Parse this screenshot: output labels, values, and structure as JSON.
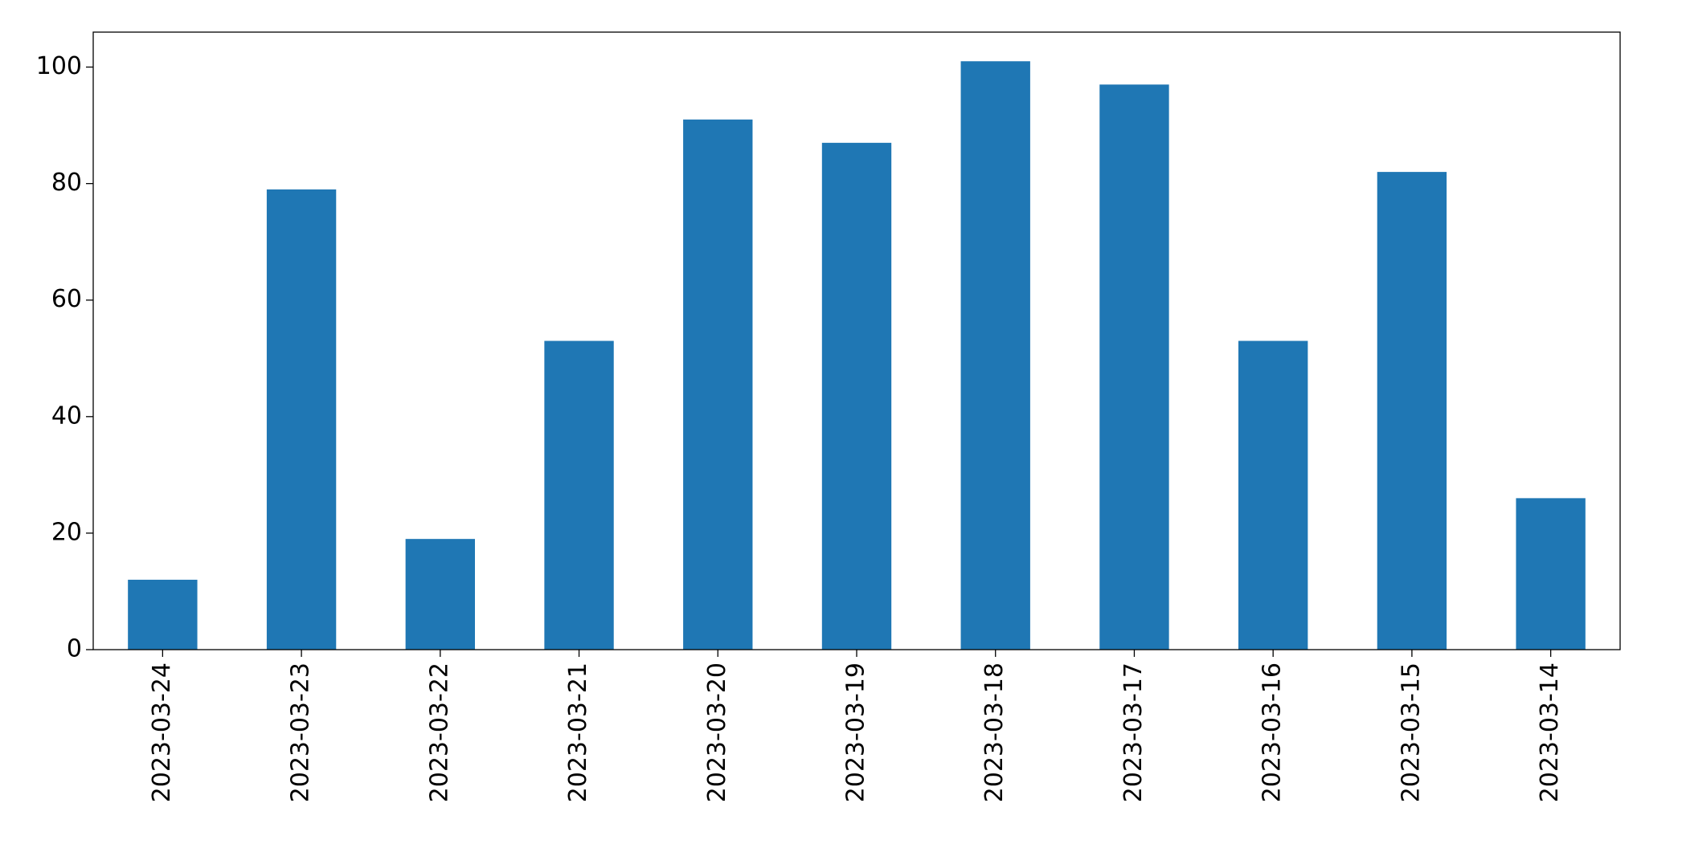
{
  "chart_data": {
    "type": "bar",
    "categories": [
      "2023-03-24",
      "2023-03-23",
      "2023-03-22",
      "2023-03-21",
      "2023-03-20",
      "2023-03-19",
      "2023-03-18",
      "2023-03-17",
      "2023-03-16",
      "2023-03-15",
      "2023-03-14"
    ],
    "values": [
      12,
      79,
      19,
      53,
      91,
      87,
      101,
      97,
      53,
      82,
      26
    ],
    "color": "#1f77b4",
    "ylim": [
      0,
      106
    ],
    "yticks": [
      0,
      20,
      40,
      60,
      80,
      100
    ],
    "grid": false
  }
}
